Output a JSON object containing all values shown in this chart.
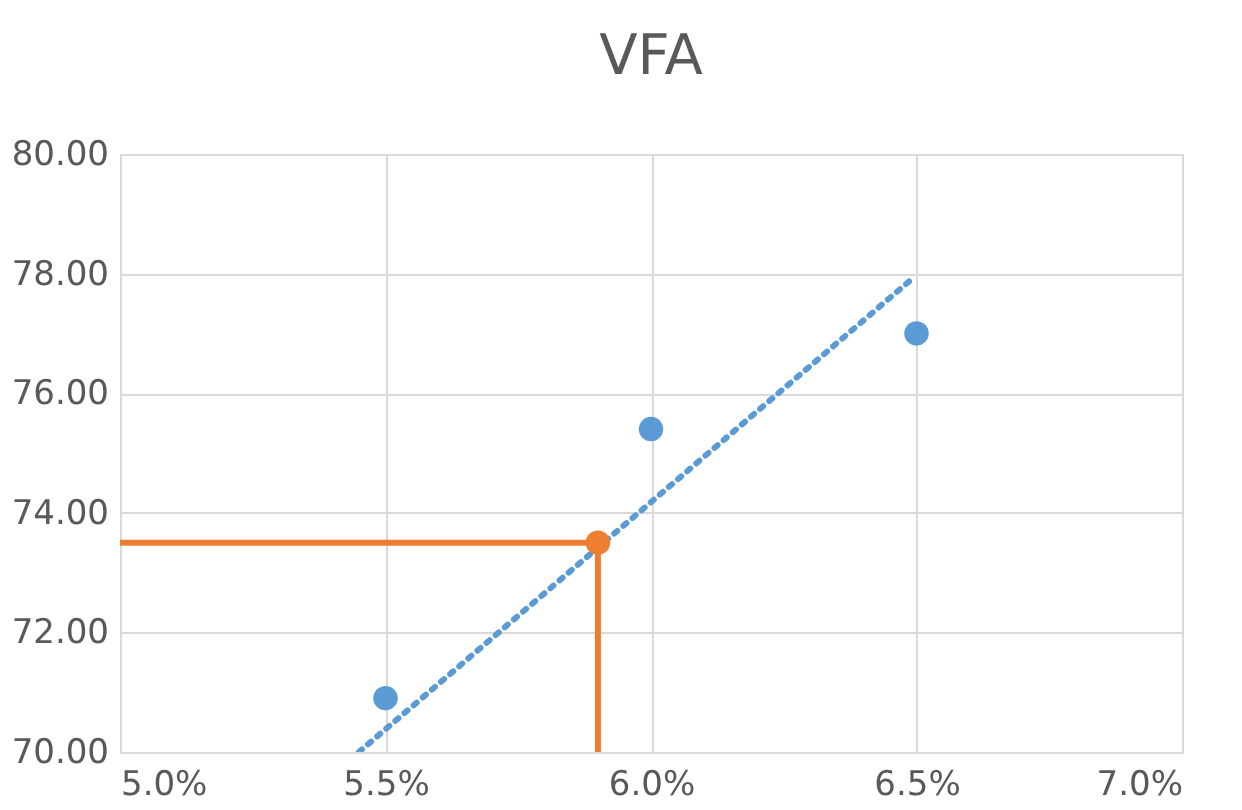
{
  "chart_data": {
    "type": "scatter",
    "title": "VFA",
    "series": [
      {
        "color": "#5b9bd5",
        "x": [
          5.5,
          6.0,
          6.5
        ],
        "values": [
          70.9,
          75.4,
          77.0
        ],
        "marker": "circle"
      },
      {
        "type": "line",
        "color": "#5b9bd5",
        "x": [
          5.45,
          6.49
        ],
        "values": [
          70.0,
          77.9
        ],
        "line_style": "dotted",
        "marker": "none"
      },
      {
        "type": "line",
        "color": "#ed7d31",
        "x": [
          5.0,
          5.9,
          5.9
        ],
        "values": [
          73.5,
          73.5,
          70.0
        ],
        "line_style": "solid",
        "marker": "none"
      },
      {
        "color": "#ed7d31",
        "x": [
          5.9
        ],
        "values": [
          73.5
        ],
        "marker": "circle"
      }
    ],
    "xlim": [
      5.0,
      7.0
    ],
    "xticks": [
      {
        "value": 5.0,
        "label": "5.0%"
      },
      {
        "value": 5.5,
        "label": "5.5%"
      },
      {
        "value": 6.0,
        "label": "6.0%"
      },
      {
        "value": 6.5,
        "label": "6.5%"
      },
      {
        "value": 7.0,
        "label": "7.0%"
      }
    ],
    "ylim": [
      70,
      80
    ],
    "yticks": [
      {
        "value": 70,
        "label": "70.00"
      },
      {
        "value": 72,
        "label": "72.00"
      },
      {
        "value": 74,
        "label": "74.00"
      },
      {
        "value": 76,
        "label": "76.00"
      },
      {
        "value": 78,
        "label": "78.00"
      },
      {
        "value": 80,
        "label": "80.00"
      }
    ],
    "grid": true,
    "legend": false
  }
}
